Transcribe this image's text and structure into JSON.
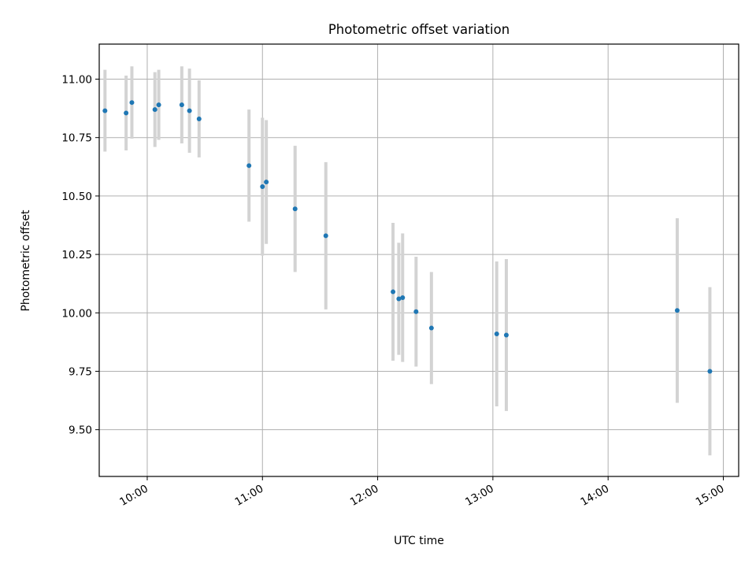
{
  "chart_data": {
    "type": "scatter",
    "title": "Photometric offset variation",
    "xlabel": "UTC time",
    "ylabel": "Photometric offset",
    "xlim": [
      "09:35",
      "15:08"
    ],
    "ylim": [
      9.3,
      11.15
    ],
    "x_ticks": [
      "10:00",
      "11:00",
      "12:00",
      "13:00",
      "14:00",
      "15:00"
    ],
    "y_ticks": [
      "9.50",
      "9.75",
      "10.00",
      "10.25",
      "10.50",
      "10.75",
      "11.00"
    ],
    "grid": true,
    "colors": {
      "point": "#1f77b4",
      "errorbar": "#d3d3d3",
      "grid": "#b0b0b0"
    },
    "points": [
      {
        "x": "09:38",
        "y": 10.865,
        "yerr": 0.175
      },
      {
        "x": "09:49",
        "y": 10.855,
        "yerr": 0.16
      },
      {
        "x": "09:52",
        "y": 10.9,
        "yerr": 0.155
      },
      {
        "x": "10:04",
        "y": 10.87,
        "yerr": 0.16
      },
      {
        "x": "10:06",
        "y": 10.89,
        "yerr": 0.15
      },
      {
        "x": "10:18",
        "y": 10.89,
        "yerr": 0.165
      },
      {
        "x": "10:22",
        "y": 10.865,
        "yerr": 0.18
      },
      {
        "x": "10:27",
        "y": 10.83,
        "yerr": 0.165
      },
      {
        "x": "10:53",
        "y": 10.63,
        "yerr": 0.24
      },
      {
        "x": "11:00",
        "y": 10.54,
        "yerr": 0.295
      },
      {
        "x": "11:02",
        "y": 10.56,
        "yerr": 0.265
      },
      {
        "x": "11:17",
        "y": 10.445,
        "yerr": 0.27
      },
      {
        "x": "11:33",
        "y": 10.33,
        "yerr": 0.315
      },
      {
        "x": "12:08",
        "y": 10.09,
        "yerr": 0.295
      },
      {
        "x": "12:11",
        "y": 10.06,
        "yerr": 0.24
      },
      {
        "x": "12:13",
        "y": 10.065,
        "yerr": 0.275
      },
      {
        "x": "12:20",
        "y": 10.005,
        "yerr": 0.235
      },
      {
        "x": "12:28",
        "y": 9.935,
        "yerr": 0.24
      },
      {
        "x": "13:02",
        "y": 9.91,
        "yerr": 0.31
      },
      {
        "x": "13:07",
        "y": 9.905,
        "yerr": 0.325
      },
      {
        "x": "14:36",
        "y": 10.01,
        "yerr": 0.395
      },
      {
        "x": "14:53",
        "y": 9.75,
        "yerr": 0.36
      }
    ]
  }
}
